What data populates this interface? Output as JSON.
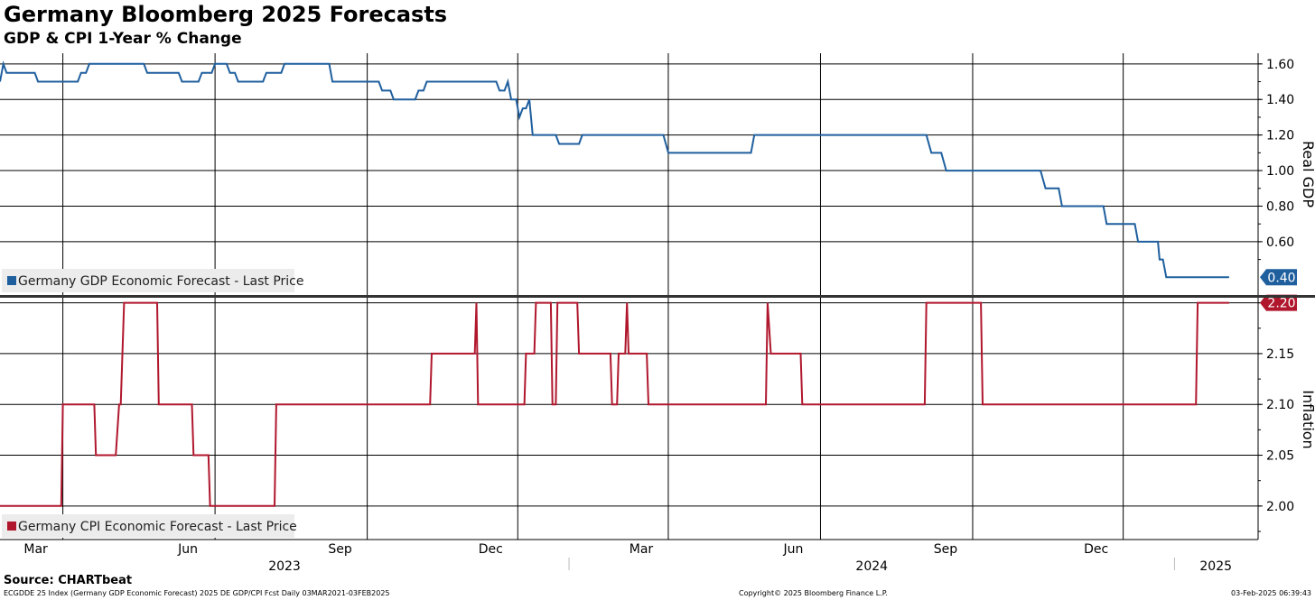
{
  "header": {
    "title": "Germany Bloomberg 2025 Forecasts",
    "subtitle": "GDP & CPI 1-Year % Change"
  },
  "footer": {
    "source": "Source: CHARTbeat",
    "index_line": "ECGDDE 25 Index (Germany GDP Economic Forecast) 2025 DE GDP/CPI Fcst  Daily 03MAR2021-03FEB2025",
    "copyright": "Copyright© 2025 Bloomberg Finance L.P.",
    "timestamp": "03-Feb-2025 06:39:43"
  },
  "colors": {
    "gdp": "#1f5f9e",
    "cpi": "#b0172d",
    "grid": "#000000",
    "legend_bg": "#ececec"
  },
  "chart_data": [
    {
      "type": "line",
      "panel": "top",
      "ylabel": "Real GDP",
      "ylim": [
        0.3,
        1.66
      ],
      "yticks": [
        "1.60",
        "1.40",
        "1.20",
        "1.00",
        "0.80",
        "0.60"
      ],
      "legend": "Germany GDP Economic Forecast - Last Price",
      "last_value_label": "0.40",
      "series": [
        {
          "name": "Germany GDP Economic Forecast - Last Price",
          "points": [
            [
              "2023-01-22",
              1.5
            ],
            [
              "2023-01-24",
              1.6
            ],
            [
              "2023-01-26",
              1.55
            ],
            [
              "2023-02-12",
              1.55
            ],
            [
              "2023-02-14",
              1.5
            ],
            [
              "2023-03-10",
              1.5
            ],
            [
              "2023-03-12",
              1.55
            ],
            [
              "2023-03-15",
              1.55
            ],
            [
              "2023-03-17",
              1.6
            ],
            [
              "2023-04-19",
              1.6
            ],
            [
              "2023-04-21",
              1.55
            ],
            [
              "2023-05-10",
              1.55
            ],
            [
              "2023-05-12",
              1.5
            ],
            [
              "2023-05-22",
              1.5
            ],
            [
              "2023-05-24",
              1.55
            ],
            [
              "2023-05-30",
              1.55
            ],
            [
              "2023-06-01",
              1.6
            ],
            [
              "2023-06-08",
              1.6
            ],
            [
              "2023-06-10",
              1.55
            ],
            [
              "2023-06-13",
              1.55
            ],
            [
              "2023-06-15",
              1.5
            ],
            [
              "2023-06-30",
              1.5
            ],
            [
              "2023-07-02",
              1.55
            ],
            [
              "2023-07-11",
              1.55
            ],
            [
              "2023-07-13",
              1.6
            ],
            [
              "2023-08-09",
              1.6
            ],
            [
              "2023-08-11",
              1.5
            ],
            [
              "2023-09-08",
              1.5
            ],
            [
              "2023-09-10",
              1.45
            ],
            [
              "2023-09-15",
              1.45
            ],
            [
              "2023-09-17",
              1.4
            ],
            [
              "2023-09-30",
              1.4
            ],
            [
              "2023-10-02",
              1.45
            ],
            [
              "2023-10-05",
              1.45
            ],
            [
              "2023-10-07",
              1.5
            ],
            [
              "2023-11-18",
              1.5
            ],
            [
              "2023-11-20",
              1.45
            ],
            [
              "2023-11-23",
              1.45
            ],
            [
              "2023-11-25",
              1.5
            ],
            [
              "2023-11-27",
              1.4
            ],
            [
              "2023-11-30",
              1.4
            ],
            [
              "2023-12-02",
              1.3
            ],
            [
              "2023-12-04",
              1.35
            ],
            [
              "2023-12-06",
              1.35
            ],
            [
              "2023-12-08",
              1.4
            ],
            [
              "2023-12-10",
              1.2
            ],
            [
              "2023-12-24",
              1.2
            ],
            [
              "2023-12-26",
              1.15
            ],
            [
              "2024-01-07",
              1.15
            ],
            [
              "2024-01-09",
              1.2
            ],
            [
              "2024-02-27",
              1.2
            ],
            [
              "2024-03-01",
              1.1
            ],
            [
              "2024-04-20",
              1.1
            ],
            [
              "2024-04-22",
              1.2
            ],
            [
              "2024-08-04",
              1.2
            ],
            [
              "2024-08-07",
              1.1
            ],
            [
              "2024-08-13",
              1.1
            ],
            [
              "2024-08-16",
              1.0
            ],
            [
              "2024-10-12",
              1.0
            ],
            [
              "2024-10-15",
              0.9
            ],
            [
              "2024-10-23",
              0.9
            ],
            [
              "2024-10-25",
              0.8
            ],
            [
              "2024-11-19",
              0.8
            ],
            [
              "2024-11-21",
              0.7
            ],
            [
              "2024-12-08",
              0.7
            ],
            [
              "2024-12-10",
              0.6
            ],
            [
              "2024-12-22",
              0.6
            ],
            [
              "2024-12-23",
              0.5
            ],
            [
              "2024-12-25",
              0.5
            ],
            [
              "2024-12-27",
              0.4
            ],
            [
              "2025-02-03",
              0.4
            ]
          ]
        }
      ]
    },
    {
      "type": "line",
      "panel": "bottom",
      "ylabel": "Inflation",
      "ylim": [
        1.967,
        2.205
      ],
      "yticks": [
        "2.20",
        "2.15",
        "2.10",
        "2.05",
        "2.00"
      ],
      "legend": "Germany CPI Economic Forecast - Last Price",
      "last_value_label": "2.20",
      "series": [
        {
          "name": "Germany CPI Economic Forecast - Last Price",
          "points": [
            [
              "2023-01-22",
              2.0
            ],
            [
              "2023-02-28",
              2.0
            ],
            [
              "2023-03-01",
              2.1
            ],
            [
              "2023-03-20",
              2.1
            ],
            [
              "2023-03-21",
              2.05
            ],
            [
              "2023-04-02",
              2.05
            ],
            [
              "2023-04-04",
              2.1
            ],
            [
              "2023-04-05",
              2.1
            ],
            [
              "2023-04-07",
              2.2
            ],
            [
              "2023-04-27",
              2.2
            ],
            [
              "2023-04-28",
              2.1
            ],
            [
              "2023-05-18",
              2.1
            ],
            [
              "2023-05-19",
              2.05
            ],
            [
              "2023-05-28",
              2.05
            ],
            [
              "2023-05-29",
              2.0
            ],
            [
              "2023-07-07",
              2.0
            ],
            [
              "2023-07-08",
              2.1
            ],
            [
              "2023-10-09",
              2.1
            ],
            [
              "2023-10-10",
              2.15
            ],
            [
              "2023-11-05",
              2.15
            ],
            [
              "2023-11-06",
              2.2
            ],
            [
              "2023-11-07",
              2.1
            ],
            [
              "2023-12-05",
              2.1
            ],
            [
              "2023-12-06",
              2.15
            ],
            [
              "2023-12-11",
              2.15
            ],
            [
              "2023-12-12",
              2.2
            ],
            [
              "2023-12-21",
              2.2
            ],
            [
              "2023-12-22",
              2.1
            ],
            [
              "2023-12-24",
              2.1
            ],
            [
              "2023-12-25",
              2.2
            ],
            [
              "2024-01-06",
              2.2
            ],
            [
              "2024-01-07",
              2.15
            ],
            [
              "2024-01-26",
              2.15
            ],
            [
              "2024-01-27",
              2.1
            ],
            [
              "2024-01-30",
              2.1
            ],
            [
              "2024-01-31",
              2.15
            ],
            [
              "2024-02-04",
              2.15
            ],
            [
              "2024-02-05",
              2.2
            ],
            [
              "2024-02-06",
              2.15
            ],
            [
              "2024-02-17",
              2.15
            ],
            [
              "2024-02-18",
              2.1
            ],
            [
              "2024-04-29",
              2.1
            ],
            [
              "2024-04-30",
              2.2
            ],
            [
              "2024-05-02",
              2.15
            ],
            [
              "2024-05-20",
              2.15
            ],
            [
              "2024-05-21",
              2.1
            ],
            [
              "2024-08-03",
              2.1
            ],
            [
              "2024-08-04",
              2.2
            ],
            [
              "2024-09-06",
              2.2
            ],
            [
              "2024-09-07",
              2.1
            ],
            [
              "2025-01-14",
              2.1
            ],
            [
              "2025-01-15",
              2.2
            ],
            [
              "2025-02-03",
              2.2
            ]
          ]
        }
      ]
    }
  ],
  "x_axis": {
    "start": "2023-01-22",
    "end": "2025-02-20",
    "month_ticks": [
      {
        "date": "2023-03-01",
        "label": "Mar"
      },
      {
        "date": "2023-06-01",
        "label": "Jun"
      },
      {
        "date": "2023-09-01",
        "label": "Sep"
      },
      {
        "date": "2023-12-01",
        "label": "Dec"
      },
      {
        "date": "2024-03-01",
        "label": "Mar"
      },
      {
        "date": "2024-06-01",
        "label": "Jun"
      },
      {
        "date": "2024-09-01",
        "label": "Sep"
      },
      {
        "date": "2024-12-01",
        "label": "Dec"
      }
    ],
    "year_labels": [
      {
        "label": "2023",
        "from": "2023-01-22",
        "to": "2024-01-01"
      },
      {
        "label": "2024",
        "from": "2024-01-01",
        "to": "2025-01-01"
      },
      {
        "label": "2025",
        "from": "2025-01-01",
        "to": "2025-02-20"
      }
    ]
  }
}
